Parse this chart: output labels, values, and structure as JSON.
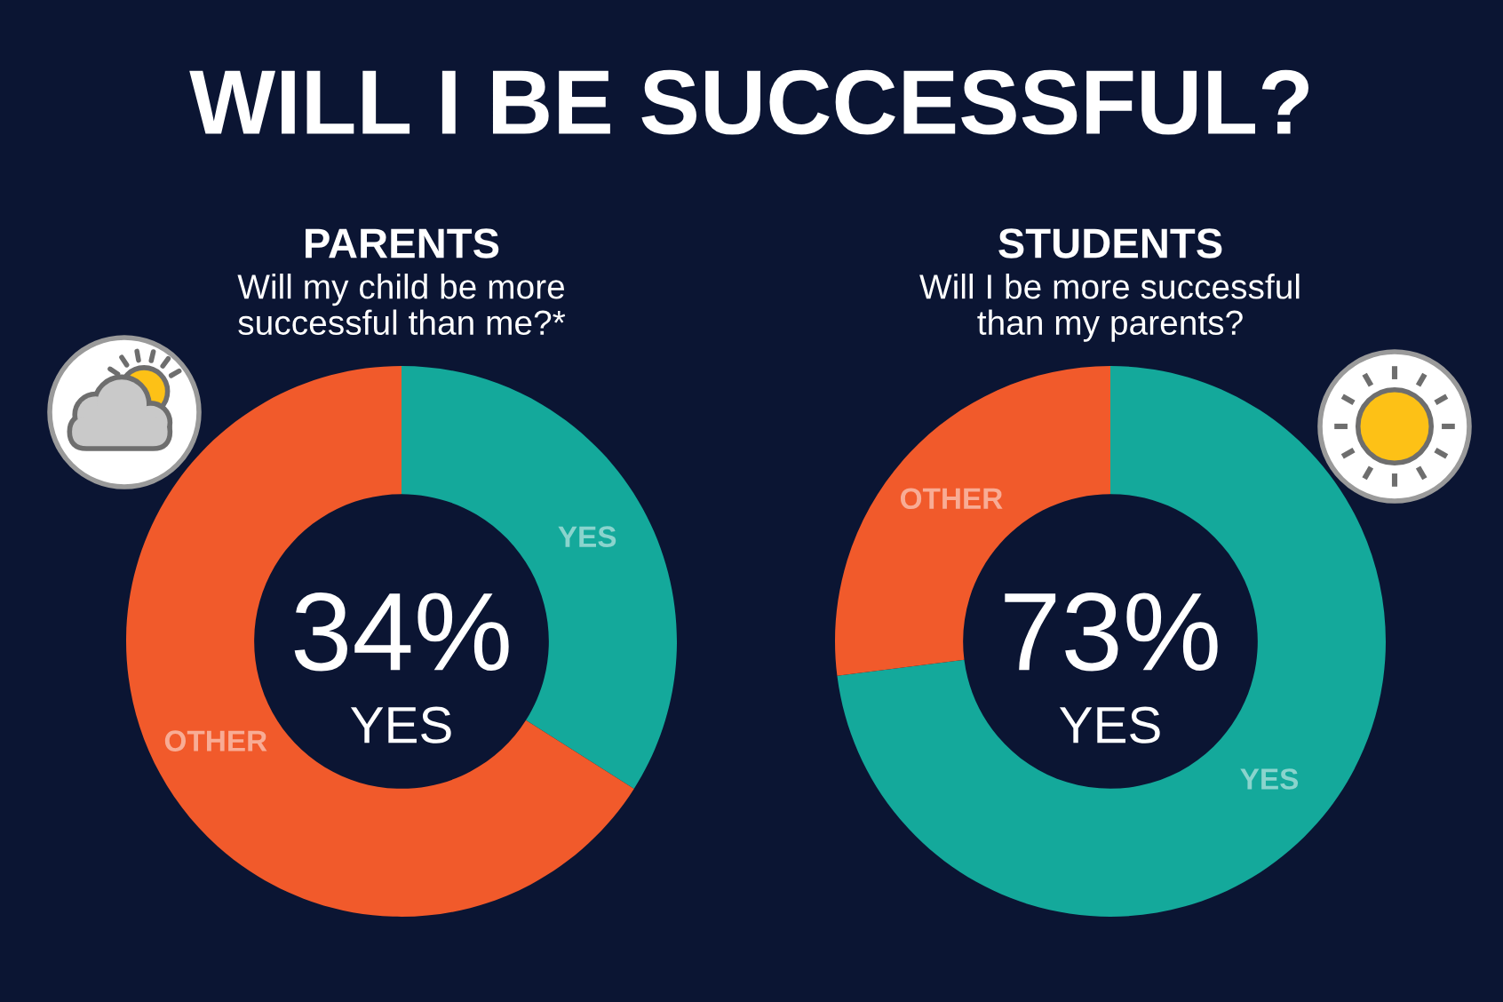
{
  "chart_data": [
    {
      "type": "other",
      "title": "WILL I BE SUCCESSFUL?"
    },
    {
      "type": "donut",
      "title": "PARENTS",
      "subtitle": "Will my child be more\nsuccessful than me?*",
      "categories": [
        "YES",
        "OTHER"
      ],
      "values": [
        34,
        66
      ],
      "colors": [
        "#14a99b",
        "#f15a2b"
      ],
      "annotations": [
        "34%",
        "YES"
      ]
    },
    {
      "type": "donut",
      "title": "STUDENTS",
      "subtitle": "Will I be more successful\nthan my parents?",
      "categories": [
        "YES",
        "OTHER"
      ],
      "values": [
        73,
        27
      ],
      "colors": [
        "#14a99b",
        "#f15a2b"
      ],
      "annotations": [
        "73%",
        "YES"
      ]
    }
  ]
}
